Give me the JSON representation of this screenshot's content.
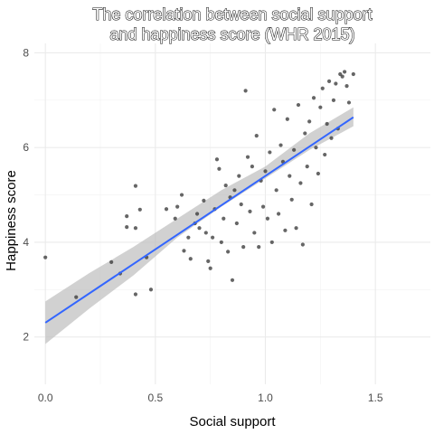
{
  "chart_data": {
    "type": "scatter",
    "title_lines": [
      "The correlation between social support",
      "and happiness score (WHR 2015)"
    ],
    "xlabel": "Social support",
    "ylabel": "Happiness score",
    "xlim": [
      -0.05,
      1.75
    ],
    "ylim": [
      1.0,
      8.2
    ],
    "x_ticks": [
      0.0,
      0.5,
      1.0,
      1.5
    ],
    "x_tick_labels": [
      "0.0",
      "0.5",
      "1.0",
      "1.5"
    ],
    "y_ticks": [
      2,
      4,
      6,
      8
    ],
    "y_tick_labels": [
      "2",
      "4",
      "6",
      "8"
    ],
    "grid": true,
    "point_color": "#333333",
    "line_color": "#3366ff",
    "band_color": "#bdbdbd",
    "regression": {
      "intercept": 2.3,
      "slope": 3.1,
      "x_range": [
        0.0,
        1.4
      ]
    },
    "confidence_band": {
      "x": [
        0.0,
        0.2,
        0.4,
        0.6,
        0.8,
        1.0,
        1.2,
        1.4
      ],
      "lower": [
        1.85,
        2.6,
        3.3,
        4.1,
        4.75,
        5.35,
        5.95,
        6.45
      ],
      "upper": [
        2.75,
        3.35,
        3.9,
        4.5,
        5.1,
        5.6,
        6.3,
        6.85
      ]
    },
    "points": [
      {
        "x": 0.0,
        "y": 3.68
      },
      {
        "x": 0.14,
        "y": 2.84
      },
      {
        "x": 0.3,
        "y": 3.58
      },
      {
        "x": 0.34,
        "y": 3.34
      },
      {
        "x": 0.37,
        "y": 4.55
      },
      {
        "x": 0.37,
        "y": 4.32
      },
      {
        "x": 0.41,
        "y": 4.3
      },
      {
        "x": 0.41,
        "y": 2.9
      },
      {
        "x": 0.41,
        "y": 5.19
      },
      {
        "x": 0.43,
        "y": 4.69
      },
      {
        "x": 0.46,
        "y": 3.68
      },
      {
        "x": 0.48,
        "y": 3.0
      },
      {
        "x": 0.55,
        "y": 4.7
      },
      {
        "x": 0.59,
        "y": 4.5
      },
      {
        "x": 0.6,
        "y": 4.75
      },
      {
        "x": 0.62,
        "y": 5.0
      },
      {
        "x": 0.63,
        "y": 3.82
      },
      {
        "x": 0.65,
        "y": 4.1
      },
      {
        "x": 0.66,
        "y": 3.65
      },
      {
        "x": 0.68,
        "y": 4.4
      },
      {
        "x": 0.69,
        "y": 4.6
      },
      {
        "x": 0.7,
        "y": 4.3
      },
      {
        "x": 0.72,
        "y": 4.88
      },
      {
        "x": 0.73,
        "y": 4.2
      },
      {
        "x": 0.74,
        "y": 3.6
      },
      {
        "x": 0.75,
        "y": 3.45
      },
      {
        "x": 0.76,
        "y": 4.1
      },
      {
        "x": 0.77,
        "y": 4.7
      },
      {
        "x": 0.78,
        "y": 5.75
      },
      {
        "x": 0.79,
        "y": 5.55
      },
      {
        "x": 0.8,
        "y": 4.0
      },
      {
        "x": 0.81,
        "y": 4.5
      },
      {
        "x": 0.82,
        "y": 5.2
      },
      {
        "x": 0.83,
        "y": 3.8
      },
      {
        "x": 0.84,
        "y": 4.95
      },
      {
        "x": 0.85,
        "y": 3.2
      },
      {
        "x": 0.86,
        "y": 5.1
      },
      {
        "x": 0.87,
        "y": 4.4
      },
      {
        "x": 0.88,
        "y": 5.4
      },
      {
        "x": 0.89,
        "y": 4.8
      },
      {
        "x": 0.9,
        "y": 3.9
      },
      {
        "x": 0.91,
        "y": 7.2
      },
      {
        "x": 0.92,
        "y": 5.8
      },
      {
        "x": 0.93,
        "y": 4.65
      },
      {
        "x": 0.94,
        "y": 5.6
      },
      {
        "x": 0.95,
        "y": 4.2
      },
      {
        "x": 0.96,
        "y": 6.25
      },
      {
        "x": 0.97,
        "y": 3.9
      },
      {
        "x": 0.98,
        "y": 5.3
      },
      {
        "x": 0.99,
        "y": 4.75
      },
      {
        "x": 1.0,
        "y": 5.5
      },
      {
        "x": 1.01,
        "y": 4.5
      },
      {
        "x": 1.02,
        "y": 5.9
      },
      {
        "x": 1.03,
        "y": 4.0
      },
      {
        "x": 1.04,
        "y": 6.8
      },
      {
        "x": 1.05,
        "y": 5.1
      },
      {
        "x": 1.06,
        "y": 4.6
      },
      {
        "x": 1.07,
        "y": 6.05
      },
      {
        "x": 1.08,
        "y": 5.7
      },
      {
        "x": 1.09,
        "y": 4.25
      },
      {
        "x": 1.1,
        "y": 6.6
      },
      {
        "x": 1.11,
        "y": 5.4
      },
      {
        "x": 1.12,
        "y": 4.9
      },
      {
        "x": 1.13,
        "y": 5.95
      },
      {
        "x": 1.14,
        "y": 4.3
      },
      {
        "x": 1.15,
        "y": 6.9
      },
      {
        "x": 1.16,
        "y": 5.25
      },
      {
        "x": 1.17,
        "y": 3.95
      },
      {
        "x": 1.18,
        "y": 6.3
      },
      {
        "x": 1.19,
        "y": 5.6
      },
      {
        "x": 1.2,
        "y": 6.55
      },
      {
        "x": 1.21,
        "y": 4.8
      },
      {
        "x": 1.22,
        "y": 7.05
      },
      {
        "x": 1.23,
        "y": 6.0
      },
      {
        "x": 1.24,
        "y": 5.45
      },
      {
        "x": 1.25,
        "y": 6.85
      },
      {
        "x": 1.26,
        "y": 7.25
      },
      {
        "x": 1.27,
        "y": 5.85
      },
      {
        "x": 1.28,
        "y": 6.5
      },
      {
        "x": 1.29,
        "y": 7.4
      },
      {
        "x": 1.3,
        "y": 6.2
      },
      {
        "x": 1.31,
        "y": 7.0
      },
      {
        "x": 1.32,
        "y": 7.35
      },
      {
        "x": 1.33,
        "y": 6.4
      },
      {
        "x": 1.34,
        "y": 7.55
      },
      {
        "x": 1.35,
        "y": 7.5
      },
      {
        "x": 1.36,
        "y": 7.6
      },
      {
        "x": 1.37,
        "y": 7.3
      },
      {
        "x": 1.38,
        "y": 6.95
      },
      {
        "x": 1.4,
        "y": 7.55
      }
    ]
  }
}
